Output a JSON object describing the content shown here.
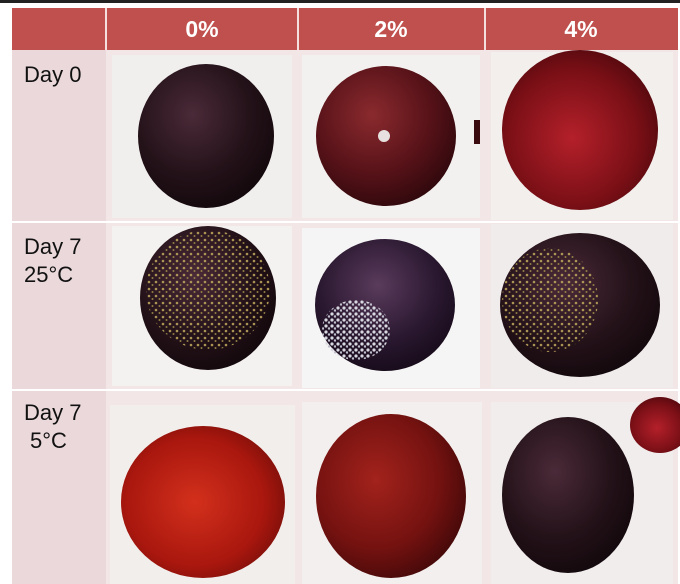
{
  "table": {
    "header": [
      "0%",
      "2%",
      "4%"
    ],
    "row_labels": [
      [
        "Day 0"
      ],
      [
        "Day 7",
        "25°C"
      ],
      [
        "Day 7",
        "5°C"
      ]
    ]
  }
}
